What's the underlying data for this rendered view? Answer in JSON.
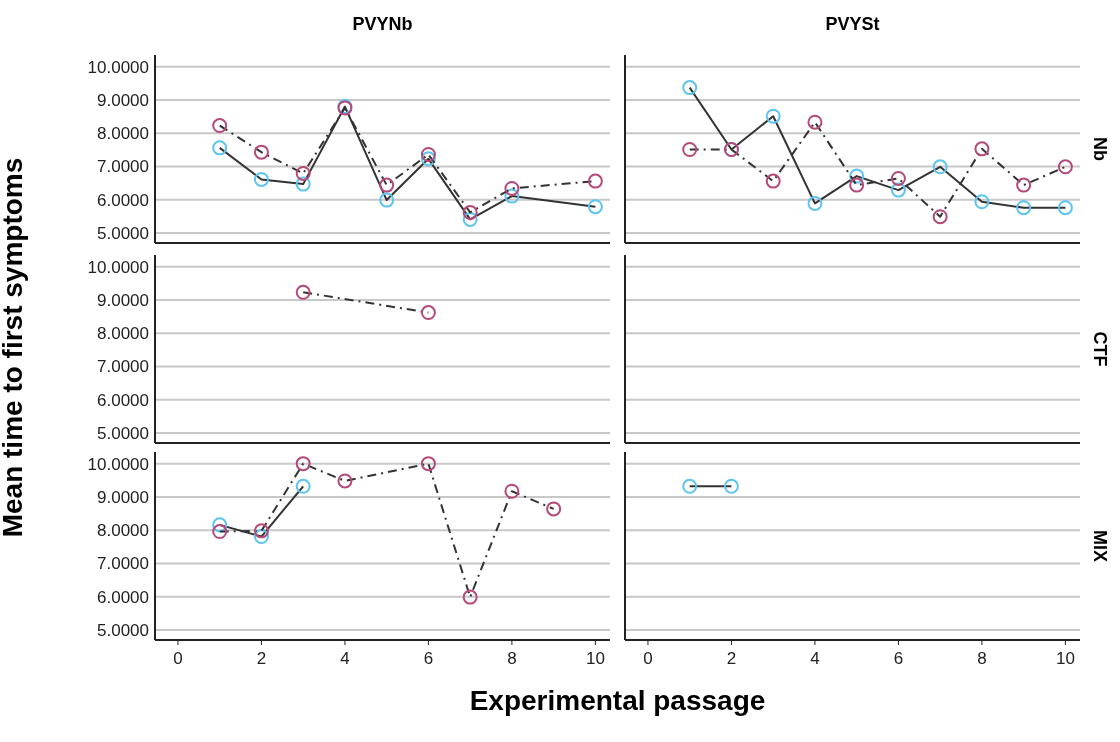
{
  "chart_data": [
    {
      "type": "line",
      "title": "PVYNb",
      "xlim": [
        -0.55,
        10.35
      ],
      "ylim": [
        4.7,
        10.35
      ],
      "yticks": [
        {
          "value": 5,
          "label": "5.0000"
        },
        {
          "value": 6,
          "label": "6.0000"
        },
        {
          "value": 7,
          "label": "7.0000"
        },
        {
          "value": 8,
          "label": "8.0000"
        },
        {
          "value": 9,
          "label": "9.0000"
        },
        {
          "value": 10,
          "label": "10.0000"
        }
      ],
      "tick_labels": "y",
      "grid": "y",
      "marker": "circle",
      "series": [
        {
          "color": "#5bc4f2",
          "line_style": "solid",
          "x": [
            1,
            2,
            3,
            4,
            5,
            6,
            7,
            8,
            10
          ],
          "values": [
            7.56,
            6.61,
            6.47,
            8.8,
            5.99,
            7.23,
            5.41,
            6.11,
            5.79
          ]
        },
        {
          "color": "#b5497a",
          "line_style": "dashed",
          "x": [
            1,
            2,
            3,
            4,
            5,
            6,
            7,
            8,
            10
          ],
          "values": [
            8.23,
            7.43,
            6.79,
            8.76,
            6.44,
            7.36,
            5.62,
            6.34,
            6.56
          ]
        }
      ]
    },
    {
      "type": "line",
      "title": "PVYSt",
      "y2label": "Nb",
      "xlim": [
        -0.55,
        10.35
      ],
      "ylim": [
        4.7,
        10.35
      ],
      "yticks": [
        5,
        6,
        7,
        8,
        9,
        10
      ],
      "tick_labels": false,
      "grid": "y",
      "marker": "circle",
      "series": [
        {
          "color": "#5bc4f2",
          "line_style": "solid",
          "x": [
            1,
            2,
            3,
            4,
            5,
            6,
            7,
            8,
            9,
            10
          ],
          "values": [
            9.37,
            7.51,
            8.51,
            5.89,
            6.71,
            6.29,
            6.99,
            5.94,
            5.76,
            5.76
          ]
        },
        {
          "color": "#b5497a",
          "line_style": "dashed",
          "x": [
            1,
            2,
            3,
            4,
            5,
            6,
            7,
            8,
            9,
            10
          ],
          "values": [
            7.51,
            7.51,
            6.56,
            8.33,
            6.44,
            6.64,
            5.49,
            7.53,
            6.44,
            6.99
          ]
        }
      ]
    },
    {
      "type": "line",
      "ylabel": "Mean time to first symptoms",
      "xlim": [
        -0.55,
        10.35
      ],
      "ylim": [
        4.7,
        10.35
      ],
      "yticks": [
        {
          "value": 5,
          "label": "5.0000"
        },
        {
          "value": 6,
          "label": "6.0000"
        },
        {
          "value": 7,
          "label": "7.0000"
        },
        {
          "value": 8,
          "label": "8.0000"
        },
        {
          "value": 9,
          "label": "9.0000"
        },
        {
          "value": 10,
          "label": "10.0000"
        }
      ],
      "tick_labels": "y",
      "grid": "y",
      "marker": "circle",
      "series": [
        {
          "color": "#b5497a",
          "line_style": "dashed",
          "x": [
            3,
            6
          ],
          "values": [
            9.23,
            8.62
          ]
        }
      ]
    },
    {
      "type": "line",
      "y2label": "CTF",
      "xlim": [
        -0.55,
        10.35
      ],
      "ylim": [
        4.7,
        10.35
      ],
      "yticks": [
        5,
        6,
        7,
        8,
        9,
        10
      ],
      "tick_labels": false,
      "grid": "y"
    },
    {
      "type": "line",
      "xlabel": "Experimental passage",
      "xlim": [
        -0.55,
        10.35
      ],
      "ylim": [
        4.7,
        10.35
      ],
      "xticks": [
        0,
        2,
        4,
        6,
        8,
        10
      ],
      "yticks": [
        {
          "value": 5,
          "label": "5.0000"
        },
        {
          "value": 6,
          "label": "6.0000"
        },
        {
          "value": 7,
          "label": "7.0000"
        },
        {
          "value": 8,
          "label": "8.0000"
        },
        {
          "value": 9,
          "label": "9.0000"
        },
        {
          "value": 10,
          "label": "10.0000"
        }
      ],
      "grid": "y",
      "marker": "circle",
      "series": [
        {
          "color": "#5bc4f2",
          "line_style": "solid",
          "x": [
            1,
            2,
            3
          ],
          "values": [
            8.16,
            7.81,
            9.32
          ]
        },
        {
          "color": "#b5497a",
          "line_style": "dashed",
          "x": [
            1,
            2,
            3,
            4,
            6,
            7,
            8,
            9
          ],
          "values": [
            7.96,
            7.98,
            10.0,
            9.48,
            10.0,
            5.99,
            9.17,
            8.64
          ]
        }
      ]
    },
    {
      "type": "line",
      "y2label": "MIX",
      "xlim": [
        -0.55,
        10.35
      ],
      "ylim": [
        4.7,
        10.35
      ],
      "xticks": [
        0,
        2,
        4,
        6,
        8,
        10
      ],
      "yticks": [
        5,
        6,
        7,
        8,
        9,
        10
      ],
      "tick_labels": "x",
      "grid": "y",
      "marker": "circle",
      "series": [
        {
          "color": "#5bc4f2",
          "line_style": "solid",
          "x": [
            1,
            2
          ],
          "values": [
            9.32,
            9.32
          ]
        }
      ]
    }
  ]
}
